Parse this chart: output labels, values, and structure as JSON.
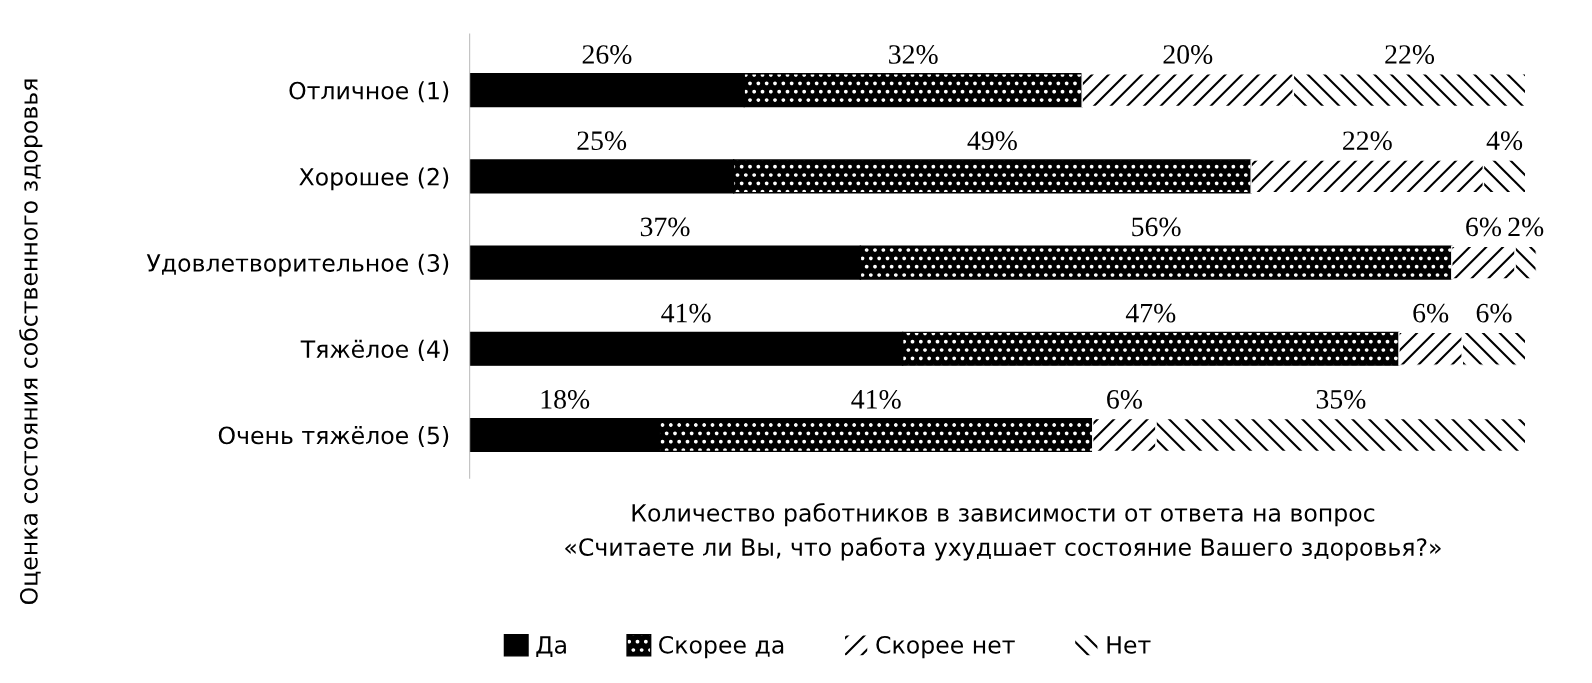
{
  "chart_data": {
    "type": "bar",
    "orientation": "horizontal",
    "stacked": true,
    "legend": "bottom",
    "tick_labels": "y",
    "ylabel": "Оценка состояния собственного здоровья",
    "xlabel": "Количество работников в зависимости от ответа на вопрос\n«Считаете ли Вы, что работа ухудшает состояние Вашего здоровья?»",
    "categories": [
      "Отличное (1)",
      "Хорошее (2)",
      "Удовлетворительное (3)",
      "Тяжёлое (4)",
      "Очень тяжёлое (5)"
    ],
    "series": [
      {
        "name": "Да",
        "color": "#000000",
        "values": [
          26,
          25,
          37,
          41,
          18
        ],
        "value_labels": [
          "26%",
          "25%",
          "37%",
          "41%",
          "18%"
        ]
      },
      {
        "name": "Скорее да",
        "color": "#000000",
        "values": [
          32,
          49,
          56,
          47,
          41
        ],
        "value_labels": [
          "32%",
          "49%",
          "56%",
          "47%",
          "41%"
        ]
      },
      {
        "name": "Скорее нет",
        "color": "#ffffff",
        "values": [
          20,
          22,
          6,
          6,
          6
        ],
        "value_labels": [
          "20%",
          "22%",
          "6%",
          "6%",
          "6%"
        ]
      },
      {
        "name": "Нет",
        "color": "#ffffff",
        "values": [
          22,
          4,
          2,
          6,
          35
        ],
        "value_labels": [
          "22%",
          "4%",
          "2%",
          "6%",
          "35%"
        ]
      }
    ]
  }
}
